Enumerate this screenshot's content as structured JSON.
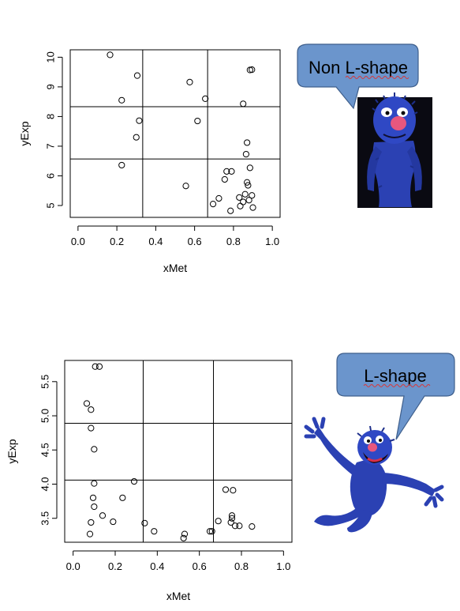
{
  "chart_data": [
    {
      "type": "scatter",
      "xlabel": "xMet",
      "ylabel": "yExp",
      "xlim": [
        -0.04,
        1.04
      ],
      "ylim": [
        4.6,
        10.25
      ],
      "xticks": [
        "0.0",
        "0.2",
        "0.4",
        "0.6",
        "0.8",
        "1.0"
      ],
      "yticks": [
        "5",
        "6",
        "7",
        "8",
        "9",
        "10"
      ],
      "x_dividers": [
        0.333,
        0.667
      ],
      "y_dividers": [
        6.57,
        8.33
      ],
      "points": [
        [
          0.165,
          10.08
        ],
        [
          0.305,
          9.38
        ],
        [
          0.575,
          9.16
        ],
        [
          0.885,
          9.57
        ],
        [
          0.895,
          9.58
        ],
        [
          0.225,
          8.55
        ],
        [
          0.655,
          8.6
        ],
        [
          0.85,
          8.43
        ],
        [
          0.315,
          7.86
        ],
        [
          0.615,
          7.85
        ],
        [
          0.3,
          7.3
        ],
        [
          0.87,
          7.12
        ],
        [
          0.865,
          6.73
        ],
        [
          0.225,
          6.36
        ],
        [
          0.885,
          6.27
        ],
        [
          0.765,
          6.15
        ],
        [
          0.79,
          6.15
        ],
        [
          0.755,
          5.88
        ],
        [
          0.87,
          5.78
        ],
        [
          0.875,
          5.68
        ],
        [
          0.555,
          5.66
        ],
        [
          0.86,
          5.38
        ],
        [
          0.895,
          5.34
        ],
        [
          0.83,
          5.27
        ],
        [
          0.725,
          5.24
        ],
        [
          0.85,
          5.12
        ],
        [
          0.88,
          5.18
        ],
        [
          0.695,
          5.05
        ],
        [
          0.835,
          4.98
        ],
        [
          0.9,
          4.93
        ],
        [
          0.785,
          4.82
        ]
      ]
    },
    {
      "type": "scatter",
      "xlabel": "xMet",
      "ylabel": "yExp",
      "xlim": [
        -0.04,
        1.04
      ],
      "ylim": [
        3.15,
        5.81
      ],
      "xticks": [
        "0.0",
        "0.2",
        "0.4",
        "0.6",
        "0.8",
        "1.0"
      ],
      "yticks": [
        "3.5",
        "4.0",
        "4.5",
        "5.0",
        "5.5"
      ],
      "x_dividers": [
        0.333,
        0.667
      ],
      "y_dividers": [
        4.06,
        4.89
      ],
      "points": [
        [
          0.105,
          5.72
        ],
        [
          0.125,
          5.72
        ],
        [
          0.065,
          5.18
        ],
        [
          0.085,
          5.09
        ],
        [
          0.085,
          4.82
        ],
        [
          0.1,
          4.51
        ],
        [
          0.1,
          4.01
        ],
        [
          0.29,
          4.04
        ],
        [
          0.725,
          3.92
        ],
        [
          0.76,
          3.91
        ],
        [
          0.095,
          3.8
        ],
        [
          0.235,
          3.8
        ],
        [
          0.1,
          3.67
        ],
        [
          0.14,
          3.54
        ],
        [
          0.755,
          3.54
        ],
        [
          0.755,
          3.5
        ],
        [
          0.085,
          3.44
        ],
        [
          0.19,
          3.45
        ],
        [
          0.34,
          3.43
        ],
        [
          0.69,
          3.46
        ],
        [
          0.75,
          3.44
        ],
        [
          0.77,
          3.39
        ],
        [
          0.79,
          3.39
        ],
        [
          0.85,
          3.38
        ],
        [
          0.385,
          3.31
        ],
        [
          0.65,
          3.31
        ],
        [
          0.66,
          3.31
        ],
        [
          0.53,
          3.27
        ],
        [
          0.08,
          3.27
        ],
        [
          0.525,
          3.21
        ]
      ]
    }
  ],
  "callouts": {
    "top": {
      "label": "Non L-shape",
      "fill": "#6b95cc"
    },
    "bottom": {
      "label": "L-shape",
      "fill": "#6b95cc"
    }
  },
  "characters": {
    "top_icon": "grover-portrait-icon",
    "bottom_icon": "grover-jumping-icon",
    "fur_color": "#2b41b3",
    "nose_color": "#e8577e"
  }
}
